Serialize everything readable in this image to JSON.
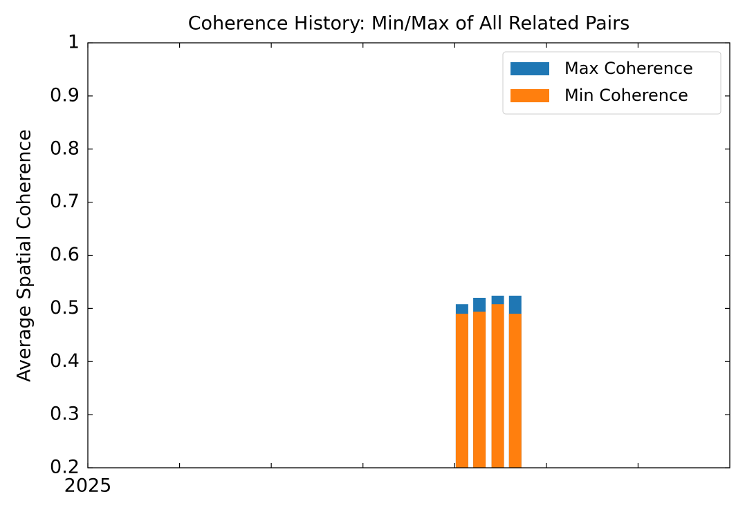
{
  "chart_data": {
    "type": "bar",
    "title": "Coherence History: Min/Max of All Related Pairs",
    "y_label": "Average Spatial Coherence",
    "x": [
      4.08,
      4.27,
      4.47,
      4.66
    ],
    "series": [
      {
        "name": "Max Coherence",
        "color": "#1f77b4",
        "values": [
          0.508,
          0.52,
          0.524,
          0.524
        ]
      },
      {
        "name": "Min Coherence",
        "color": "#ff7f0e",
        "values": [
          0.49,
          0.494,
          0.508,
          0.49
        ]
      }
    ],
    "xlim": [
      0,
      7
    ],
    "xticks": [
      {
        "value": 0,
        "label": "2025"
      },
      {
        "value": 1,
        "label": null
      },
      {
        "value": 2,
        "label": null
      },
      {
        "value": 3,
        "label": null
      },
      {
        "value": 4,
        "label": null
      },
      {
        "value": 5,
        "label": null
      },
      {
        "value": 6,
        "label": null
      }
    ],
    "ylim": [
      0.2,
      1.0
    ],
    "yticks": [
      0.2,
      0.3,
      0.4,
      0.5,
      0.6,
      0.7,
      0.8,
      0.9,
      1.0
    ],
    "legend": "upper right"
  }
}
